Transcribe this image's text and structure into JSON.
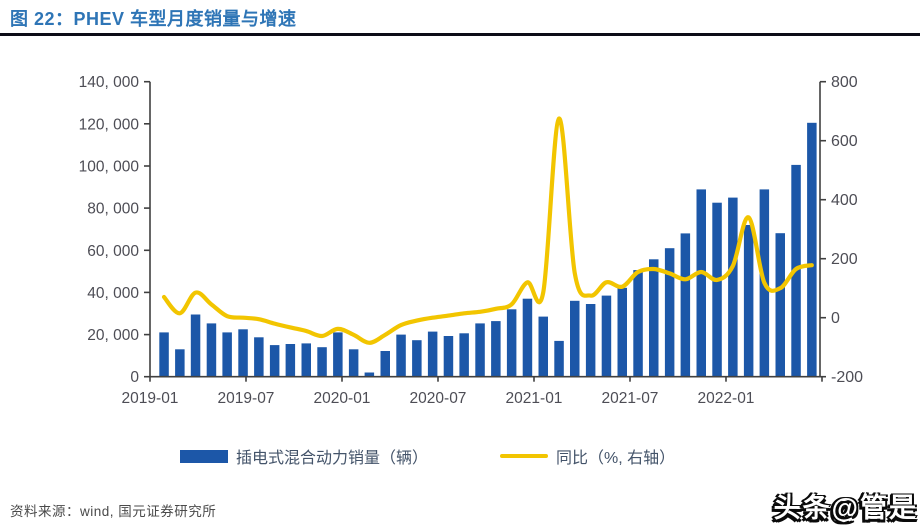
{
  "header": {
    "title": "图 22：PHEV 车型月度销量与增速"
  },
  "chart_data": {
    "type": "bar+line",
    "months": [
      "2019-01",
      "2019-02",
      "2019-03",
      "2019-04",
      "2019-05",
      "2019-06",
      "2019-07",
      "2019-08",
      "2019-09",
      "2019-10",
      "2019-11",
      "2019-12",
      "2020-01",
      "2020-02",
      "2020-03",
      "2020-04",
      "2020-05",
      "2020-06",
      "2020-07",
      "2020-08",
      "2020-09",
      "2020-10",
      "2020-11",
      "2020-12",
      "2021-01",
      "2021-02",
      "2021-03",
      "2021-04",
      "2021-05",
      "2021-06",
      "2021-07",
      "2021-08",
      "2021-09",
      "2021-10",
      "2021-11",
      "2021-12",
      "2022-01",
      "2022-02",
      "2022-03",
      "2022-04",
      "2022-05",
      "2022-06"
    ],
    "x_tick_labels": [
      "2019-01",
      "2019-07",
      "2020-01",
      "2020-07",
      "2021-01",
      "2021-07",
      "2022-01"
    ],
    "left_axis": {
      "min": 0,
      "max": 140000,
      "tick_step": 20000,
      "tick_labels": [
        "140, 000",
        "120, 000",
        "100, 000",
        "80, 000",
        "60, 000",
        "40, 000",
        "20, 000",
        "0"
      ]
    },
    "right_axis": {
      "min": -200,
      "max": 800,
      "tick_step": 200,
      "tick_labels": [
        "800",
        "600",
        "400",
        "200",
        "0",
        "-200"
      ]
    },
    "grid": "off",
    "legend_position": "bottom",
    "series": [
      {
        "name": "插电式混合动力销量（辆）",
        "type": "bar",
        "axis": "left",
        "color": "#1c57a8",
        "values": [
          21000,
          13000,
          29500,
          25300,
          21000,
          22500,
          18700,
          15000,
          15500,
          15800,
          14000,
          21000,
          13000,
          2000,
          12200,
          20000,
          17300,
          21400,
          19300,
          20600,
          25300,
          26400,
          32000,
          37000,
          28500,
          17000,
          36000,
          34500,
          38500,
          42200,
          50600,
          55700,
          61000,
          68000,
          88900,
          82600,
          85000,
          72000,
          88900,
          68100,
          100500,
          120500
        ]
      },
      {
        "name": "同比（%, 右轴）",
        "type": "line",
        "axis": "right",
        "color": "#f2c500",
        "values": [
          70,
          15,
          85,
          45,
          5,
          0,
          -5,
          -20,
          -33,
          -45,
          -62,
          -38,
          -58,
          -85,
          -58,
          -25,
          -10,
          0,
          7,
          15,
          20,
          30,
          45,
          120,
          85,
          675,
          150,
          75,
          120,
          105,
          155,
          165,
          150,
          130,
          155,
          128,
          175,
          340,
          118,
          100,
          165,
          178
        ]
      }
    ]
  },
  "legend": {
    "items": [
      {
        "label": "插电式混合动力销量（辆）"
      },
      {
        "label": "同比（%, 右轴）"
      }
    ]
  },
  "footer": {
    "source": "资料来源：wind, 国元证券研究所"
  },
  "watermark": {
    "text": "头条@管是"
  },
  "colors": {
    "bar": "#1c57a8",
    "line": "#f2c500",
    "title": "#2e75b6",
    "axis_text": "#4d4d55",
    "axis_line": "#404040",
    "title_rule": "#0c0c17"
  }
}
